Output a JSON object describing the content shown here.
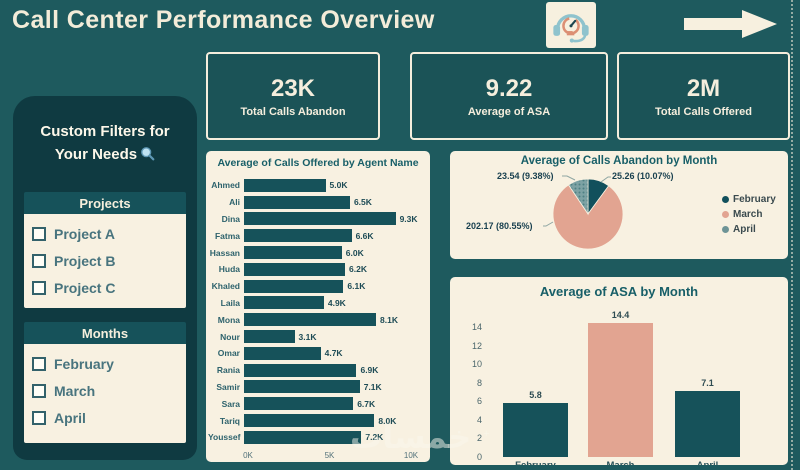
{
  "header": {
    "title": "Call Center Performance Overview",
    "icons": [
      "call-center-headset-gauge-icon",
      "right-arrow-icon"
    ]
  },
  "kpis": [
    {
      "value": "23K",
      "label": "Total Calls Abandon"
    },
    {
      "value": "9.22",
      "label": "Average of ASA"
    },
    {
      "value": "2M",
      "label": "Total Calls Offered"
    }
  ],
  "sidebar": {
    "heading_line1": "Custom Filters for",
    "heading_line2": "Your Needs",
    "heading_icon": "magnifier-icon",
    "filters": [
      {
        "title": "Projects",
        "options": [
          "Project A",
          "Project B",
          "Project C"
        ],
        "checked": [
          false,
          false,
          false
        ]
      },
      {
        "title": "Months",
        "options": [
          "February",
          "March",
          "April"
        ],
        "checked": [
          false,
          false,
          false
        ]
      }
    ]
  },
  "watermark": "خمسات",
  "colors": {
    "background": "#1e5a5e",
    "sidebar_bg": "#0f3a41",
    "panel_cream": "#f8f1e1",
    "card_fill": "#1b5357",
    "accent_teal": "#16525a",
    "salmon": "#e2a491",
    "april_gray": "#6e9496",
    "cream_text": "#f3ecd9",
    "title_teal": "#185f68"
  },
  "chart_data": [
    {
      "type": "bar",
      "orientation": "horizontal",
      "title": "Average of Calls Offered by Agent Name",
      "categories": [
        "Ahmed",
        "Ali",
        "Dina",
        "Fatma",
        "Hassan",
        "Huda",
        "Khaled",
        "Laila",
        "Mona",
        "Nour",
        "Omar",
        "Rania",
        "Samir",
        "Sara",
        "Tariq",
        "Youssef"
      ],
      "values": [
        5000,
        6500,
        9300,
        6600,
        6000,
        6200,
        6100,
        4900,
        8100,
        3100,
        4700,
        6900,
        7100,
        6700,
        8000,
        7200
      ],
      "value_labels": [
        "5.0K",
        "6.5K",
        "9.3K",
        "6.6K",
        "6.0K",
        "6.2K",
        "6.1K",
        "4.9K",
        "8.1K",
        "3.1K",
        "4.7K",
        "6.9K",
        "7.1K",
        "6.7K",
        "8.0K",
        "7.2K"
      ],
      "x_ticks": [
        "0K",
        "5K",
        "10K"
      ],
      "xlim": [
        0,
        10000
      ],
      "bar_color": "#16525a",
      "grid": false
    },
    {
      "type": "pie",
      "title": "Average of Calls Abandon by Month",
      "slices": [
        {
          "name": "February",
          "value": 25.26,
          "pct": 10.07,
          "label": "25.26 (10.07%)",
          "color": "#12505c"
        },
        {
          "name": "March",
          "value": 202.17,
          "pct": 80.55,
          "label": "202.17 (80.55%)",
          "color": "#e2a491"
        },
        {
          "name": "April",
          "value": 23.54,
          "pct": 9.38,
          "label": "23.54 (9.38%)",
          "color": "#6e9496",
          "texture": "dotted"
        }
      ],
      "legend": [
        "February",
        "March",
        "April"
      ],
      "legend_position": "right"
    },
    {
      "type": "bar",
      "orientation": "vertical",
      "title": "Average of ASA by Month",
      "categories": [
        "February",
        "March",
        "April"
      ],
      "values": [
        5.8,
        14.4,
        7.1
      ],
      "value_labels": [
        "5.8",
        "14.4",
        "7.1"
      ],
      "y_ticks": [
        14,
        12,
        10,
        8,
        6,
        4,
        2,
        0
      ],
      "ylim": [
        0,
        14.4
      ],
      "bar_colors": [
        "#16525a",
        "#e2a491",
        "#16525a"
      ],
      "grid": false
    }
  ]
}
